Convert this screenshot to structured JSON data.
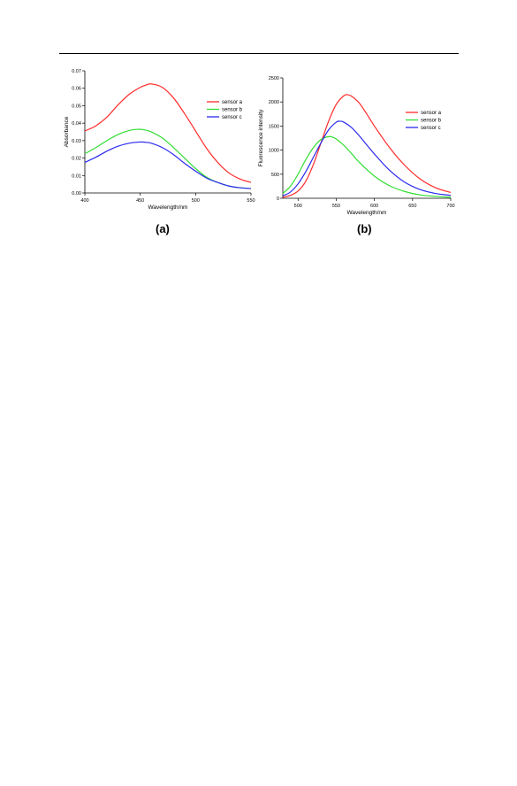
{
  "chart_data": [
    {
      "type": "line",
      "panel_label": "(a)",
      "xlabel": "Wavelength/nm",
      "ylabel": "Absorbance",
      "xlim": [
        400,
        550
      ],
      "ylim": [
        0,
        0.07
      ],
      "x_ticks": [
        400,
        450,
        500,
        550
      ],
      "y_ticks": [
        "0.00",
        "0.01",
        "0.02",
        "0.03",
        "0.04",
        "0.05",
        "0.06",
        "0.07"
      ],
      "legend_position": "top-right",
      "series": [
        {
          "name": "sensor a",
          "color": "#ff2a2a",
          "x": [
            400,
            410,
            420,
            430,
            440,
            450,
            455,
            460,
            470,
            480,
            490,
            500,
            510,
            520,
            530,
            540,
            550
          ],
          "y": [
            0.0355,
            0.0385,
            0.0435,
            0.0505,
            0.0565,
            0.0605,
            0.0618,
            0.0625,
            0.0605,
            0.0545,
            0.0455,
            0.0355,
            0.0255,
            0.0175,
            0.0115,
            0.008,
            0.006
          ]
        },
        {
          "name": "sensor b",
          "color": "#33dd33",
          "x": [
            400,
            410,
            420,
            430,
            440,
            448,
            455,
            460,
            470,
            480,
            490,
            500,
            510,
            520,
            530,
            540,
            550
          ],
          "y": [
            0.0225,
            0.026,
            0.03,
            0.0335,
            0.0358,
            0.0365,
            0.036,
            0.035,
            0.0315,
            0.026,
            0.02,
            0.014,
            0.009,
            0.006,
            0.004,
            0.003,
            0.0025
          ]
        },
        {
          "name": "sensor c",
          "color": "#2a2aee",
          "x": [
            400,
            410,
            420,
            430,
            440,
            450,
            455,
            460,
            470,
            480,
            490,
            500,
            510,
            520,
            530,
            540,
            550
          ],
          "y": [
            0.0175,
            0.0205,
            0.024,
            0.0268,
            0.0285,
            0.0292,
            0.029,
            0.0285,
            0.026,
            0.022,
            0.017,
            0.0125,
            0.0085,
            0.006,
            0.004,
            0.003,
            0.0025
          ]
        }
      ]
    },
    {
      "type": "line",
      "panel_label": "(b)",
      "xlabel": "Wavelength/nm",
      "ylabel": "Fluorescence intensity",
      "xlim": [
        480,
        700
      ],
      "ylim": [
        0,
        2500
      ],
      "x_ticks": [
        500,
        550,
        600,
        650,
        700
      ],
      "y_ticks": [
        "0",
        "500",
        "1000",
        "1500",
        "2000",
        "2500"
      ],
      "legend_position": "top-right",
      "series": [
        {
          "name": "sensor a",
          "color": "#ff2a2a",
          "x": [
            480,
            490,
            500,
            510,
            520,
            530,
            540,
            550,
            560,
            565,
            570,
            580,
            590,
            600,
            620,
            640,
            660,
            680,
            700
          ],
          "y": [
            20,
            60,
            150,
            350,
            700,
            1150,
            1600,
            1950,
            2130,
            2150,
            2120,
            1980,
            1750,
            1500,
            1050,
            680,
            400,
            220,
            120
          ]
        },
        {
          "name": "sensor b",
          "color": "#33dd33",
          "x": [
            480,
            490,
            500,
            510,
            520,
            530,
            540,
            545,
            550,
            560,
            570,
            580,
            600,
            620,
            640,
            660,
            680,
            700
          ],
          "y": [
            100,
            250,
            500,
            800,
            1050,
            1220,
            1280,
            1270,
            1230,
            1100,
            930,
            750,
            460,
            260,
            140,
            70,
            40,
            20
          ]
        },
        {
          "name": "sensor c",
          "color": "#2a2aee",
          "x": [
            480,
            490,
            500,
            510,
            520,
            530,
            540,
            550,
            555,
            560,
            570,
            580,
            600,
            620,
            640,
            660,
            680,
            700
          ],
          "y": [
            50,
            130,
            300,
            550,
            850,
            1150,
            1420,
            1580,
            1600,
            1580,
            1470,
            1300,
            920,
            580,
            330,
            180,
            100,
            60
          ]
        }
      ]
    }
  ]
}
